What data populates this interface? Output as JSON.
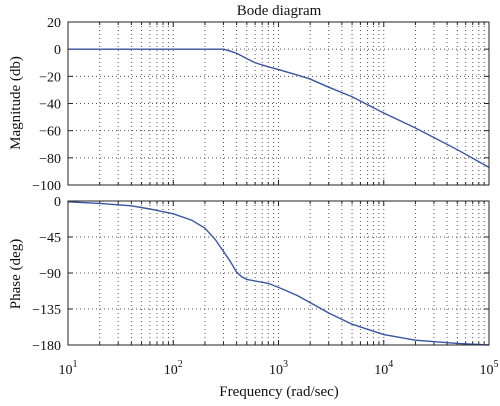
{
  "chart_data": [
    {
      "type": "line",
      "panel": "magnitude",
      "title": "Bode diagram",
      "xlabel": "",
      "ylabel": "Magnitude (db)",
      "xscale": "log",
      "xlim": [
        10,
        100000
      ],
      "ylim": [
        -100,
        20
      ],
      "yticks": [
        20,
        0,
        -20,
        -40,
        -60,
        -80,
        -100
      ],
      "grid": "on",
      "series": [
        {
          "color": "#3a55a0",
          "x": [
            10,
            100,
            200,
            300,
            350,
            400,
            500,
            600,
            800,
            1000,
            1500,
            2000,
            3000,
            5000,
            10000,
            20000,
            50000,
            100000
          ],
          "y": [
            0,
            0,
            0,
            0,
            -1.5,
            -3,
            -7,
            -10,
            -13,
            -15,
            -19,
            -22,
            -28,
            -35,
            -47,
            -58,
            -74,
            -87
          ]
        }
      ]
    },
    {
      "type": "line",
      "panel": "phase",
      "xlabel": "Frequency (rad/sec)",
      "ylabel": "Phase (deg)",
      "xscale": "log",
      "xlim": [
        10,
        100000
      ],
      "ylim": [
        -180,
        0
      ],
      "yticks": [
        0,
        -45,
        -90,
        -135,
        -180
      ],
      "xticks": [
        {
          "base": "10",
          "exp": "1",
          "value": 10
        },
        {
          "base": "10",
          "exp": "2",
          "value": 100
        },
        {
          "base": "10",
          "exp": "3",
          "value": 1000
        },
        {
          "base": "10",
          "exp": "4",
          "value": 10000
        },
        {
          "base": "10",
          "exp": "5",
          "value": 100000
        }
      ],
      "grid": "on",
      "series": [
        {
          "color": "#3a55a0",
          "x": [
            10,
            20,
            40,
            60,
            100,
            150,
            200,
            250,
            300,
            350,
            400,
            450,
            500,
            600,
            800,
            1000,
            1500,
            2000,
            3000,
            5000,
            10000,
            20000,
            50000,
            100000
          ],
          "y": [
            -1,
            -3,
            -6,
            -10,
            -16,
            -24,
            -34,
            -48,
            -63,
            -76,
            -89,
            -95,
            -98,
            -100,
            -103,
            -108,
            -118,
            -127,
            -140,
            -154,
            -167,
            -174,
            -178,
            -180
          ]
        }
      ]
    }
  ]
}
